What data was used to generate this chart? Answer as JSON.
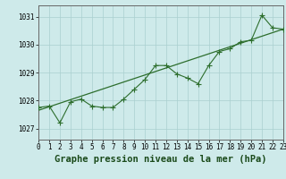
{
  "title": "Graphe pression niveau de la mer (hPa)",
  "bg_color": "#ceeaea",
  "grid_color": "#aacfcf",
  "line_color": "#2d6e2d",
  "x_min": 0,
  "x_max": 23,
  "y_min": 1026.6,
  "y_max": 1031.4,
  "y_ticks": [
    1027,
    1028,
    1029,
    1030,
    1031
  ],
  "x_ticks": [
    0,
    1,
    2,
    3,
    4,
    5,
    6,
    7,
    8,
    9,
    10,
    11,
    12,
    13,
    14,
    15,
    16,
    17,
    18,
    19,
    20,
    21,
    22,
    23
  ],
  "jagged_x": [
    0,
    1,
    2,
    3,
    4,
    5,
    6,
    7,
    8,
    9,
    10,
    11,
    12,
    13,
    14,
    15,
    16,
    17,
    18,
    19,
    20,
    21,
    22,
    23
  ],
  "jagged_y": [
    1027.75,
    1027.8,
    1027.2,
    1027.95,
    1028.05,
    1027.8,
    1027.75,
    1027.75,
    1028.05,
    1028.4,
    1028.75,
    1029.25,
    1029.25,
    1028.95,
    1028.8,
    1028.6,
    1029.25,
    1029.75,
    1029.85,
    1030.1,
    1030.15,
    1031.05,
    1030.6,
    1030.55
  ],
  "trend_x": [
    0,
    23
  ],
  "trend_y": [
    1027.65,
    1030.55
  ],
  "title_fontsize": 7.5,
  "tick_fontsize": 5.5
}
